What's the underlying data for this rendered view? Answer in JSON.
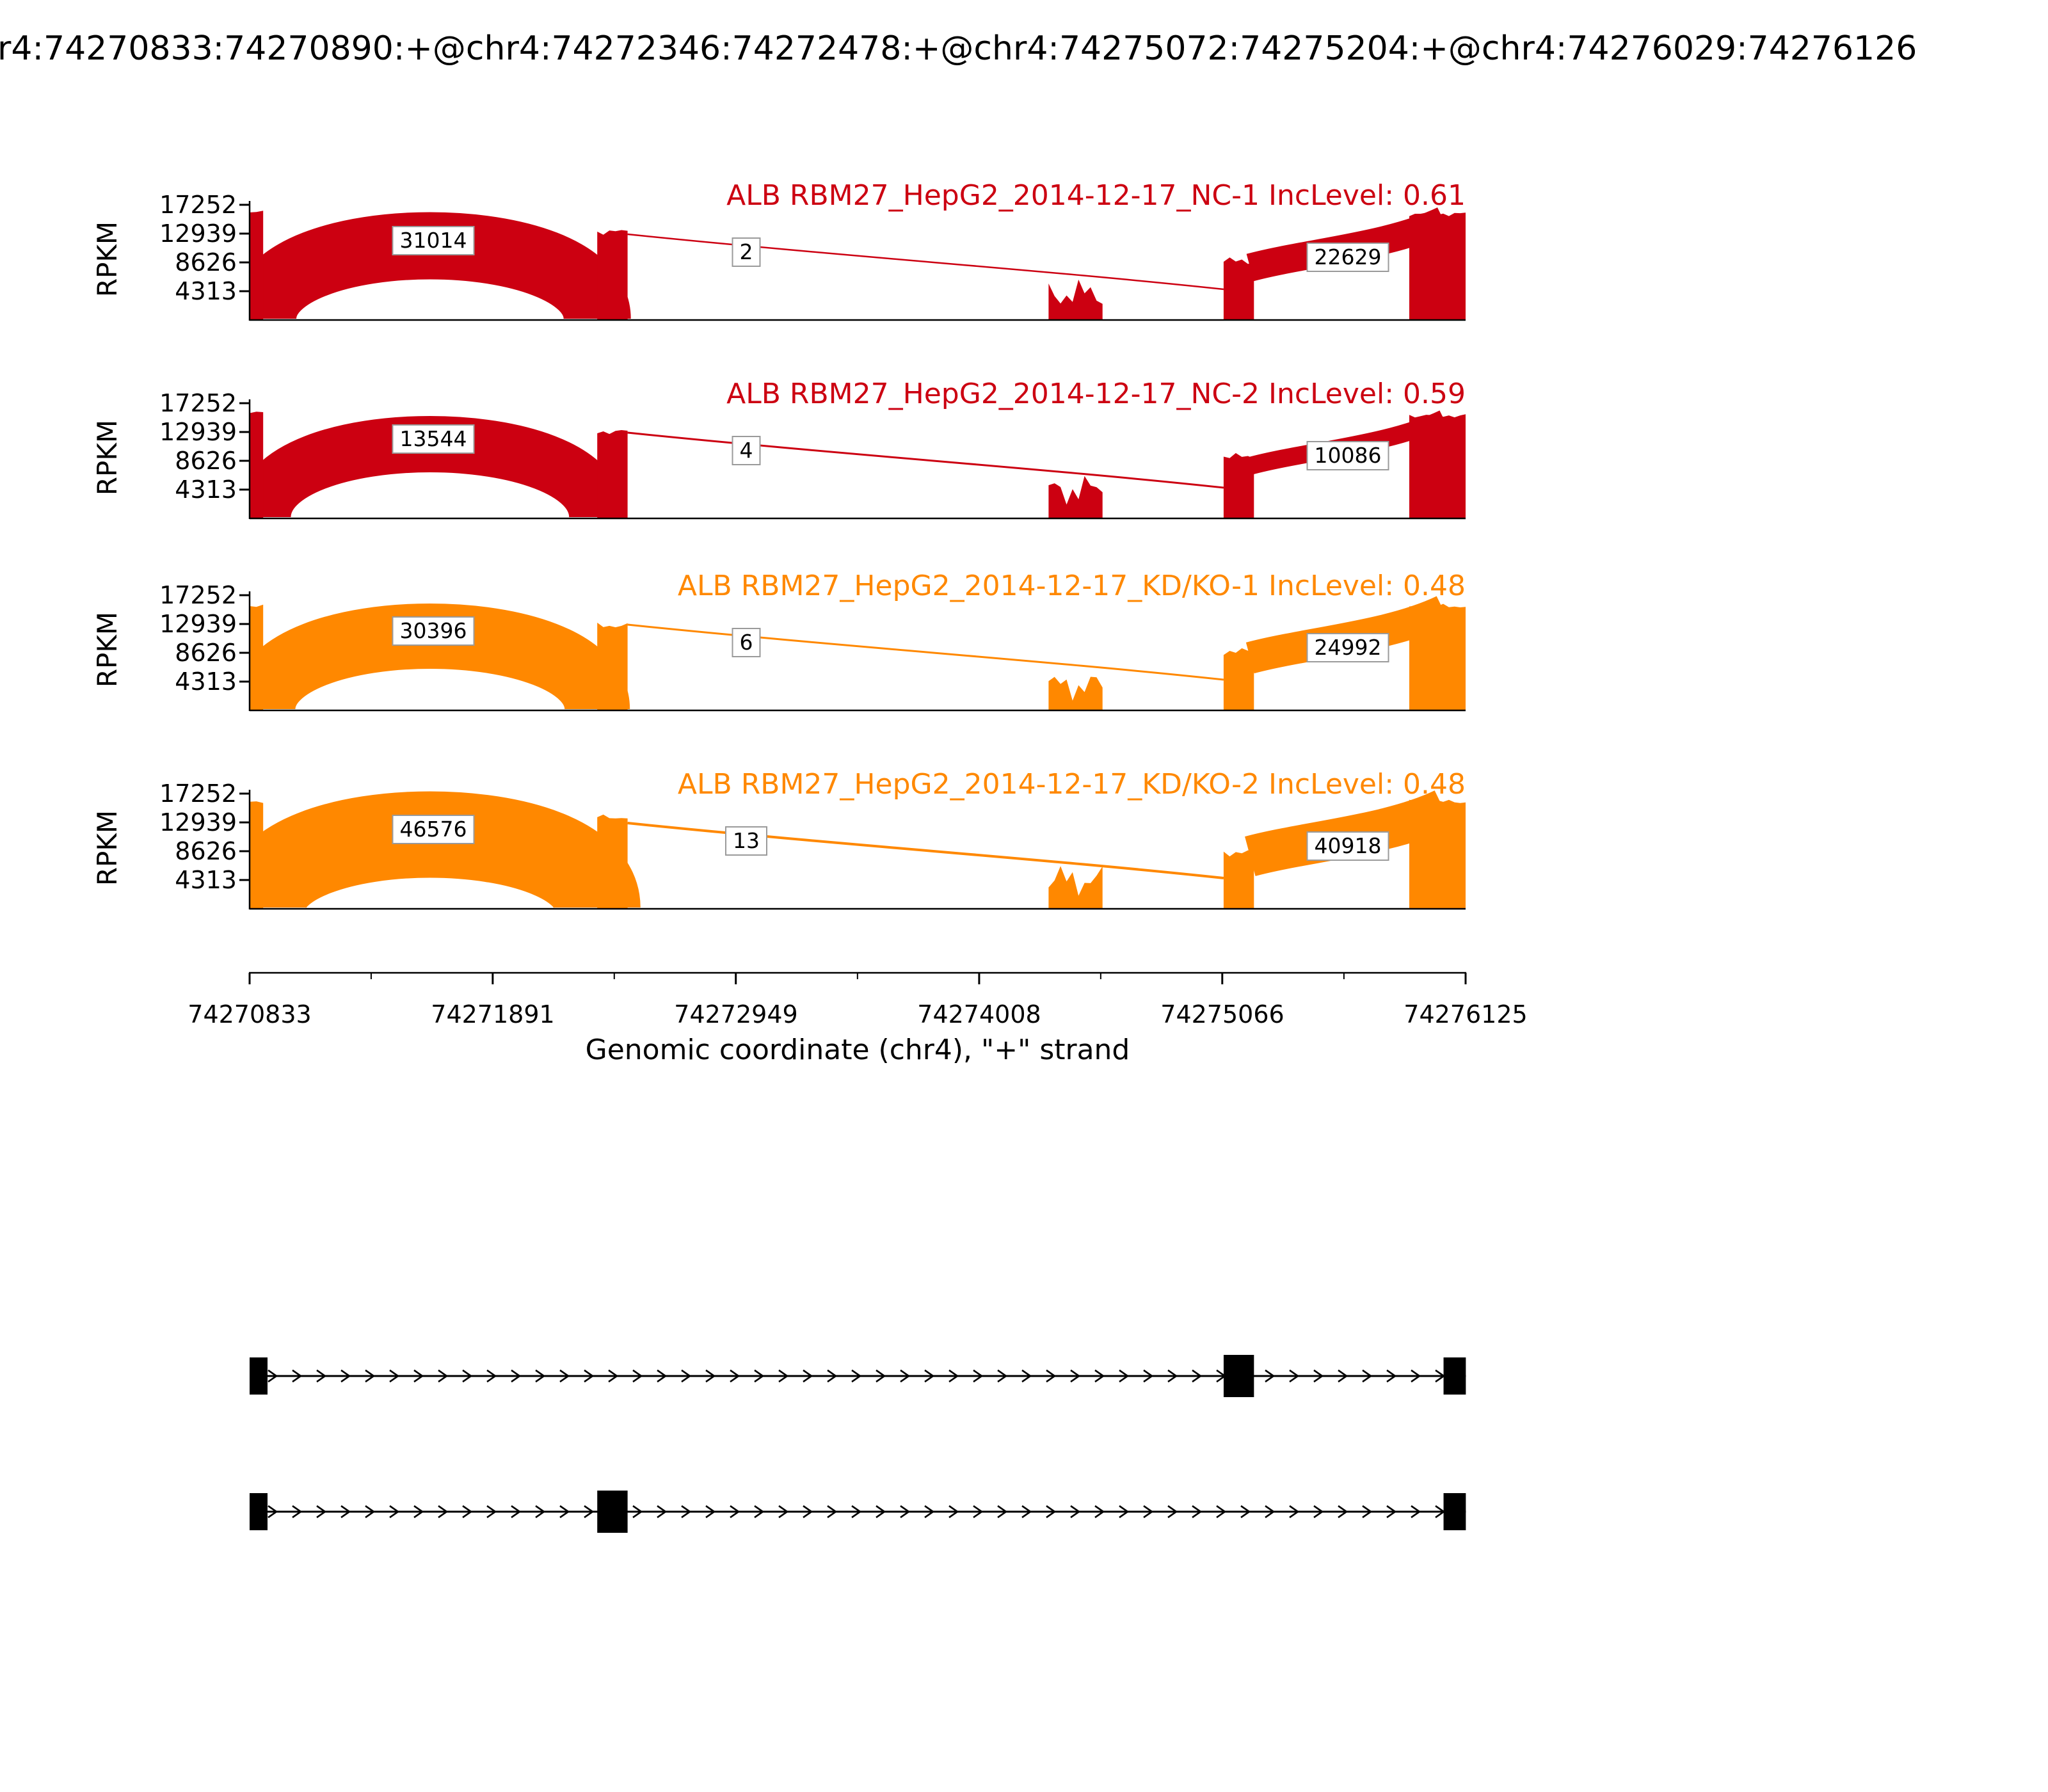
{
  "header": {
    "title": "r4:74270833:74270890:+@chr4:74272346:74272478:+@chr4:74275072:74275204:+@chr4:74276029:74276126"
  },
  "chart_data": {
    "type": "sashimi",
    "gene": "ALB",
    "chromosome": "chr4",
    "strand": "+",
    "x_axis": {
      "label": "Genomic coordinate (chr4), \"+\" strand",
      "ticks": [
        74270833,
        74271891,
        74272949,
        74274008,
        74275066,
        74276125
      ],
      "range": [
        74270833,
        74276125
      ]
    },
    "y_axis": {
      "label": "RPKM",
      "ticks": [
        4313,
        8626,
        12939,
        17252
      ],
      "max": 17252
    },
    "tracks": [
      {
        "title": "ALB RBM27_HepG2_2014-12-17_NC-1 IncLevel: 0.61",
        "inc_level": 0.61,
        "color": "#CC0011",
        "coverage": [
          {
            "start": 74270833,
            "end": 74270892,
            "rpkm": 16400,
            "jag": 6
          },
          {
            "start": 74272346,
            "end": 74272478,
            "rpkm": 13700,
            "jag": 10
          },
          {
            "start": 74274310,
            "end": 74274545,
            "rpkm": 6300,
            "jag": 50
          },
          {
            "start": 74275072,
            "end": 74275204,
            "rpkm": 9400,
            "jag": 12
          },
          {
            "start": 74275880,
            "end": 74276126,
            "rpkm": 16300,
            "jag": 8
          }
        ],
        "junctions": [
          {
            "from": 74270890,
            "to": 74272346,
            "count": 31014,
            "thickness": 105
          },
          {
            "from": 74272478,
            "to": 74275072,
            "count": 2,
            "thickness": 2.5
          },
          {
            "from": 74275204,
            "to": 74276029,
            "count": 22629,
            "thickness": 44
          }
        ]
      },
      {
        "title": "ALB RBM27_HepG2_2014-12-17_NC-2 IncLevel: 0.59",
        "inc_level": 0.59,
        "color": "#CC0011",
        "coverage": [
          {
            "start": 74270833,
            "end": 74270892,
            "rpkm": 16200,
            "jag": 6
          },
          {
            "start": 74272346,
            "end": 74272478,
            "rpkm": 13500,
            "jag": 10
          },
          {
            "start": 74274310,
            "end": 74274545,
            "rpkm": 6900,
            "jag": 55
          },
          {
            "start": 74275072,
            "end": 74275204,
            "rpkm": 9800,
            "jag": 12
          },
          {
            "start": 74275880,
            "end": 74276126,
            "rpkm": 15800,
            "jag": 8
          }
        ],
        "junctions": [
          {
            "from": 74270890,
            "to": 74272346,
            "count": 13544,
            "thickness": 88
          },
          {
            "from": 74272478,
            "to": 74275072,
            "count": 4,
            "thickness": 3
          },
          {
            "from": 74275204,
            "to": 74276029,
            "count": 10086,
            "thickness": 28
          }
        ]
      },
      {
        "title": "ALB RBM27_HepG2_2014-12-17_KD/KO-1 IncLevel: 0.48",
        "inc_level": 0.48,
        "color": "#FF8800",
        "coverage": [
          {
            "start": 74270833,
            "end": 74270892,
            "rpkm": 16000,
            "jag": 6
          },
          {
            "start": 74272346,
            "end": 74272478,
            "rpkm": 13200,
            "jag": 10
          },
          {
            "start": 74274310,
            "end": 74274545,
            "rpkm": 6100,
            "jag": 50
          },
          {
            "start": 74275072,
            "end": 74275204,
            "rpkm": 9400,
            "jag": 12
          },
          {
            "start": 74275880,
            "end": 74276126,
            "rpkm": 16000,
            "jag": 8
          }
        ],
        "junctions": [
          {
            "from": 74270890,
            "to": 74272346,
            "count": 30396,
            "thickness": 102
          },
          {
            "from": 74272478,
            "to": 74275072,
            "count": 6,
            "thickness": 3
          },
          {
            "from": 74275204,
            "to": 74276029,
            "count": 24992,
            "thickness": 50
          }
        ]
      },
      {
        "title": "ALB RBM27_HepG2_2014-12-17_KD/KO-2 IncLevel: 0.48",
        "inc_level": 0.48,
        "color": "#FF8800",
        "coverage": [
          {
            "start": 74270833,
            "end": 74270892,
            "rpkm": 16400,
            "jag": 6
          },
          {
            "start": 74272346,
            "end": 74272478,
            "rpkm": 14200,
            "jag": 10
          },
          {
            "start": 74274310,
            "end": 74274545,
            "rpkm": 6900,
            "jag": 55
          },
          {
            "start": 74275072,
            "end": 74275204,
            "rpkm": 9000,
            "jag": 12
          },
          {
            "start": 74275880,
            "end": 74276126,
            "rpkm": 16400,
            "jag": 8
          }
        ],
        "junctions": [
          {
            "from": 74270890,
            "to": 74272346,
            "count": 46576,
            "thickness": 135
          },
          {
            "from": 74272478,
            "to": 74275072,
            "count": 13,
            "thickness": 4
          },
          {
            "from": 74275204,
            "to": 74276029,
            "count": 40918,
            "thickness": 64
          }
        ]
      }
    ],
    "isoforms": [
      {
        "exons": [
          [
            74270833,
            74270895
          ],
          [
            74275072,
            74275204
          ],
          [
            74276029,
            74276126
          ]
        ]
      },
      {
        "exons": [
          [
            74270833,
            74270895
          ],
          [
            74272346,
            74272478
          ],
          [
            74276029,
            74276126
          ]
        ]
      }
    ]
  }
}
